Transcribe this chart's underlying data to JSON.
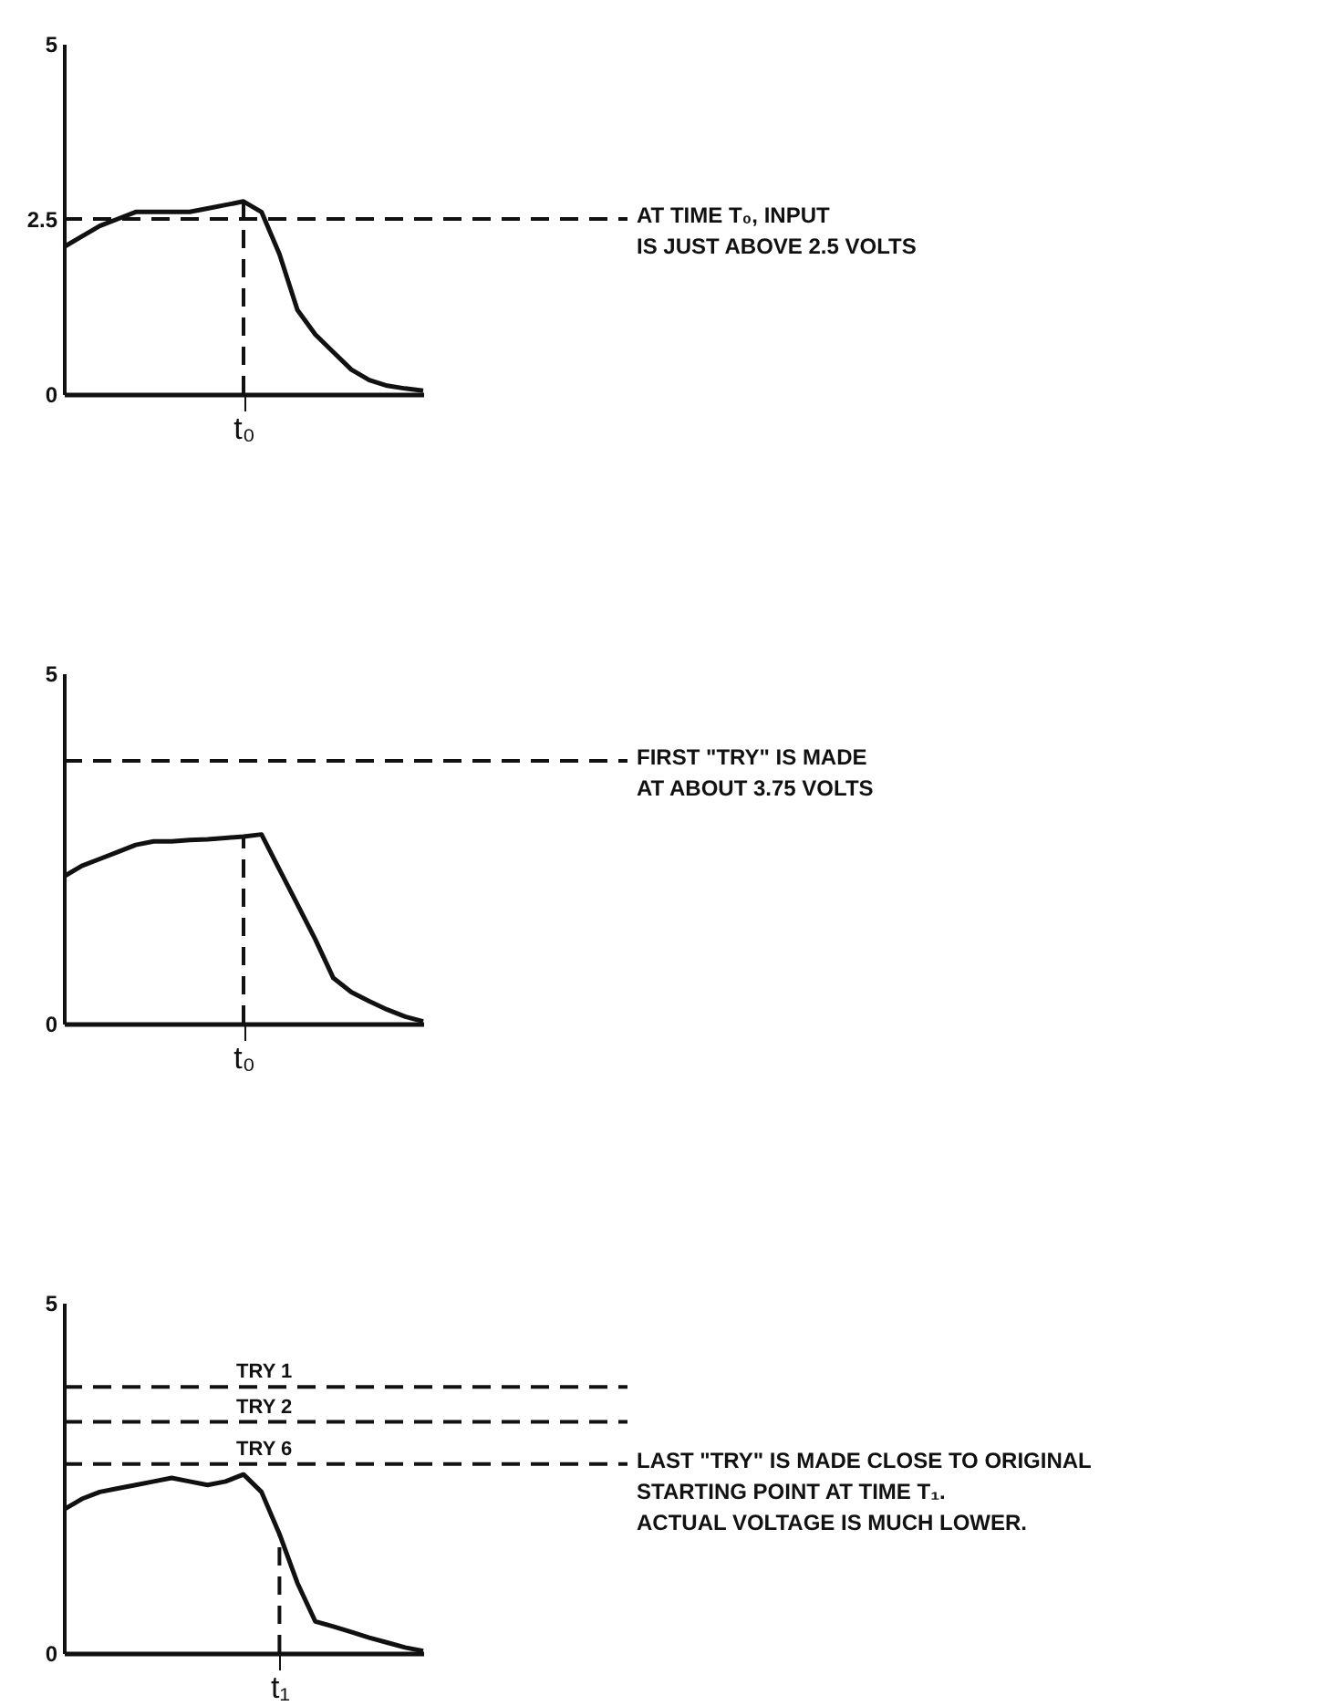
{
  "chart_data": [
    {
      "type": "line",
      "categories": [
        null,
        null,
        null,
        null,
        null,
        null,
        null,
        null,
        null,
        null,
        "t₀",
        null,
        null,
        null,
        null,
        null,
        null,
        null,
        null,
        null,
        null
      ],
      "series": [
        {
          "color": "#111111",
          "values": [
            2.1,
            2.25,
            2.4,
            2.5,
            2.6,
            2.6,
            2.6,
            2.6,
            2.65,
            2.7,
            2.75,
            2.6,
            2.0,
            1.2,
            0.85,
            0.6,
            0.35,
            0.2,
            0.12,
            0.08,
            0.05
          ]
        }
      ],
      "ylim": [
        0,
        5
      ],
      "yticks": [
        0,
        2.5,
        5
      ],
      "grid": false,
      "ref_lines": [
        {
          "axis": "y",
          "value": 2.5,
          "line_style": "dashed"
        },
        {
          "axis": "x",
          "value": "t₀",
          "line_style": "dashed"
        }
      ],
      "annotations": [
        "AT TIME T₀, INPUT\nIS JUST ABOVE 2.5 VOLTS"
      ]
    },
    {
      "type": "line",
      "categories": [
        null,
        null,
        null,
        null,
        null,
        null,
        null,
        null,
        null,
        null,
        "t₀",
        null,
        null,
        null,
        null,
        null,
        null,
        null,
        null,
        null,
        null
      ],
      "series": [
        {
          "color": "#111111",
          "values": [
            2.1,
            2.25,
            2.35,
            2.45,
            2.55,
            2.6,
            2.6,
            2.62,
            2.63,
            2.65,
            2.67,
            2.7,
            2.2,
            1.7,
            1.2,
            0.65,
            0.45,
            0.32,
            0.2,
            0.1,
            0.03
          ]
        }
      ],
      "ylim": [
        0,
        5
      ],
      "yticks": [
        0,
        5
      ],
      "grid": false,
      "ref_lines": [
        {
          "axis": "y",
          "value": 3.75,
          "line_style": "dashed"
        },
        {
          "axis": "x",
          "value": "t₀",
          "line_style": "dashed"
        }
      ],
      "annotations": [
        "FIRST \"TRY\" IS MADE\nAT ABOUT 3.75 VOLTS"
      ]
    },
    {
      "type": "line",
      "categories": [
        null,
        null,
        null,
        null,
        null,
        null,
        null,
        null,
        null,
        null,
        null,
        null,
        "t₁",
        null,
        null,
        null,
        null,
        null,
        null,
        null,
        null
      ],
      "series": [
        {
          "color": "#111111",
          "values": [
            2.05,
            2.2,
            2.3,
            2.35,
            2.4,
            2.45,
            2.5,
            2.45,
            2.4,
            2.45,
            2.55,
            2.3,
            1.7,
            1.0,
            0.45,
            0.38,
            0.3,
            0.22,
            0.15,
            0.08,
            0.03
          ]
        }
      ],
      "ylim": [
        0,
        5
      ],
      "yticks": [
        0,
        5
      ],
      "grid": false,
      "ref_lines": [
        {
          "axis": "y",
          "value": 3.8,
          "label": "TRY 1",
          "line_style": "dashed"
        },
        {
          "axis": "y",
          "value": 3.3,
          "label": "TRY 2",
          "line_style": "dashed"
        },
        {
          "axis": "y",
          "value": 2.7,
          "label": "TRY 6",
          "line_style": "dashed"
        },
        {
          "axis": "x",
          "value": "t₁",
          "line_style": "dashed"
        }
      ],
      "annotations": [
        "LAST \"TRY\" IS MADE CLOSE TO ORIGINAL\nSTARTING POINT AT TIME T₁.\nACTUAL VOLTAGE IS MUCH LOWER."
      ]
    }
  ]
}
